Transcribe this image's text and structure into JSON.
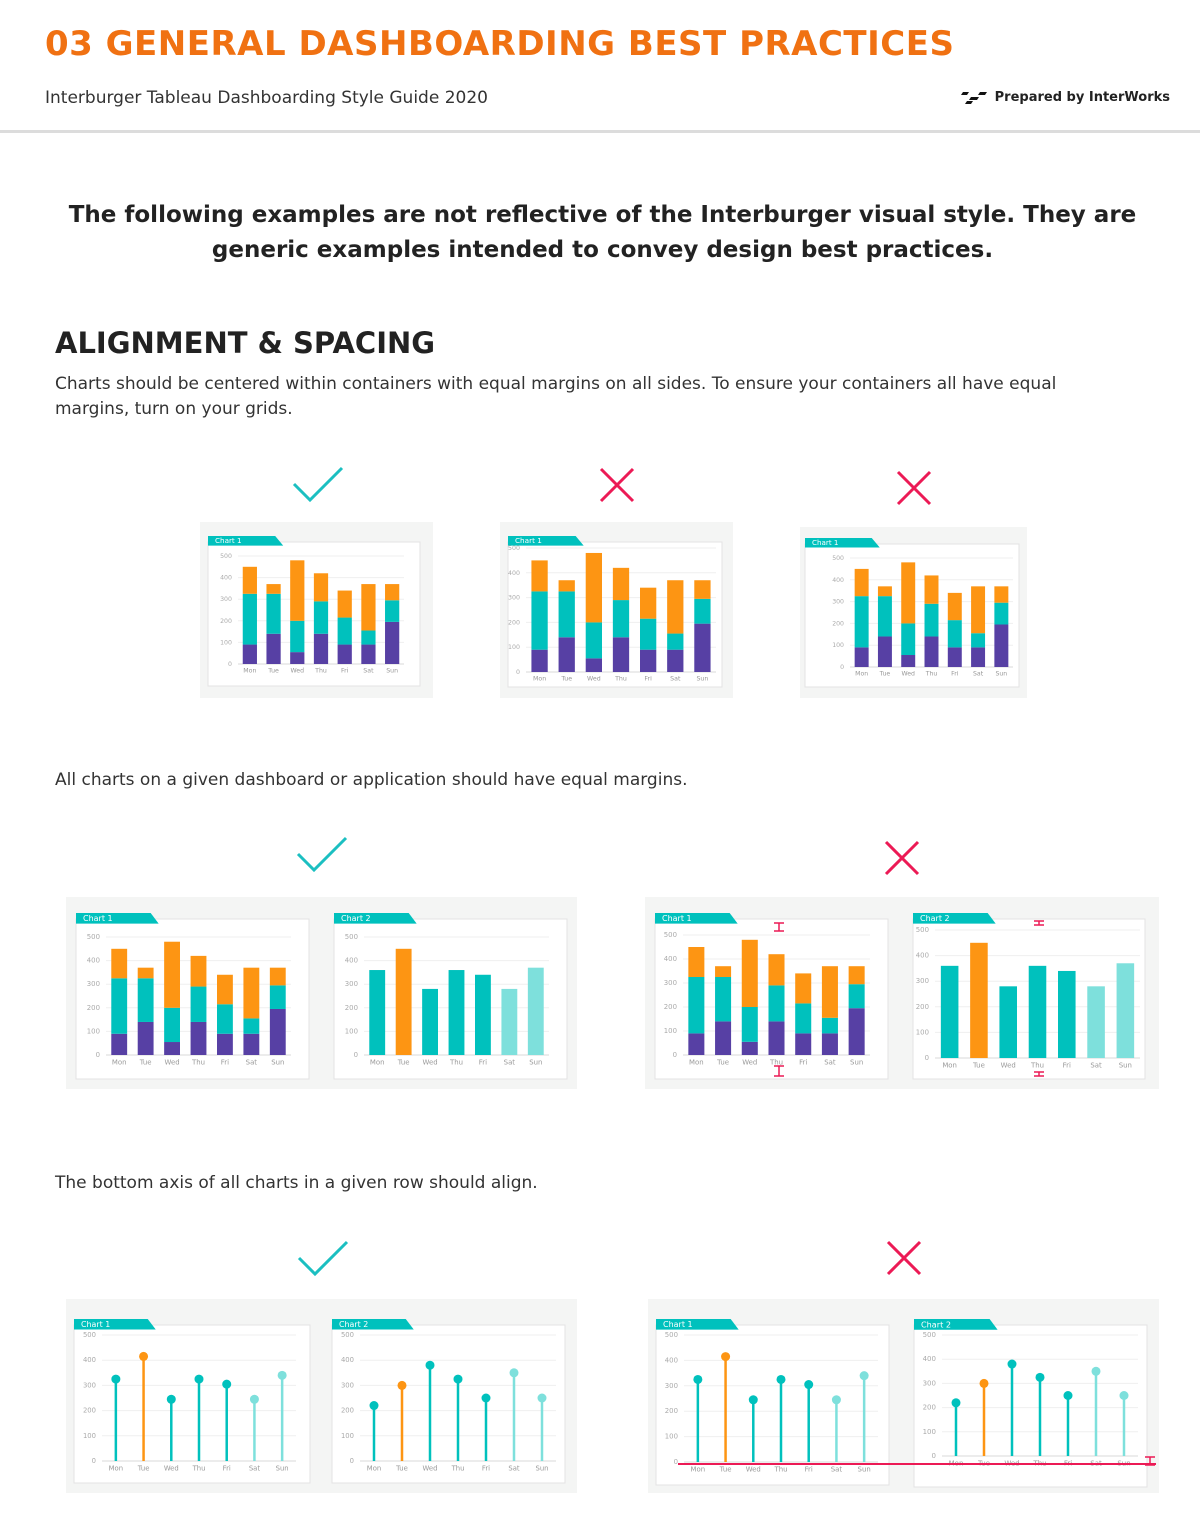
{
  "header": {
    "title": "03 GENERAL DASHBOARDING BEST PRACTICES",
    "subtitle": "Interburger Tableau Dashboarding Style Guide 2020",
    "prepared_by": "Prepared by InterWorks"
  },
  "intro": "The following examples are not reflective of the Interburger visual style. They are generic examples intended to convey design best practices.",
  "section": {
    "title": "ALIGNMENT & SPACING",
    "paragraph1": "Charts should be centered within containers with equal margins on all sides. To ensure your containers all have equal margins, turn on your grids.",
    "paragraph2": "All charts on a given dashboard or application should have equal margins.",
    "paragraph3": "The bottom axis of all charts in a given row should align."
  },
  "colors": {
    "title_orange": "#f07112",
    "teal": "#00c1bd",
    "light_teal": "#7ee0dc",
    "orange": "#fd9513",
    "purple": "#5740a4",
    "check": "#1bbfc1",
    "cross": "#ec1a55"
  },
  "icons": [
    "check-icon",
    "cross-icon"
  ],
  "chart_data": [
    {
      "type": "bar",
      "title": "Chart 1",
      "stacked": true,
      "categories": [
        "Mon",
        "Tue",
        "Wed",
        "Thu",
        "Fri",
        "Sat",
        "Sun"
      ],
      "ylim": [
        0,
        500
      ],
      "yticks": [
        "0",
        "100",
        "200",
        "300",
        "400",
        "500"
      ],
      "series": [
        {
          "values": [
            90,
            140,
            55,
            140,
            90,
            90,
            195
          ]
        },
        {
          "values": [
            235,
            185,
            145,
            150,
            125,
            65,
            100
          ]
        },
        {
          "values": [
            125,
            45,
            280,
            130,
            125,
            215,
            75
          ]
        }
      ]
    },
    {
      "type": "bar",
      "title": "Chart 2",
      "categories": [
        "Mon",
        "Tue",
        "Wed",
        "Thu",
        "Fri",
        "Sat",
        "Sun"
      ],
      "ylim": [
        0,
        500
      ],
      "yticks": [
        "0",
        "100",
        "200",
        "300",
        "400",
        "500"
      ],
      "values": [
        360,
        450,
        280,
        360,
        340,
        280,
        370
      ]
    },
    {
      "type": "lollipop",
      "title": "Chart 1",
      "categories": [
        "Mon",
        "Tue",
        "Wed",
        "Thu",
        "Fri",
        "Sat",
        "Sun"
      ],
      "ylim": [
        0,
        500
      ],
      "yticks": [
        "0",
        "100",
        "200",
        "300",
        "400",
        "500"
      ],
      "values": [
        325,
        415,
        245,
        325,
        305,
        245,
        340
      ]
    },
    {
      "type": "lollipop",
      "title": "Chart 2",
      "categories": [
        "Mon",
        "Tue",
        "Wed",
        "Thu",
        "Fri",
        "Sat",
        "Sun"
      ],
      "ylim": [
        0,
        500
      ],
      "yticks": [
        "0",
        "100",
        "200",
        "300",
        "400",
        "500"
      ],
      "values": [
        220,
        300,
        380,
        325,
        250,
        350,
        250
      ]
    }
  ]
}
